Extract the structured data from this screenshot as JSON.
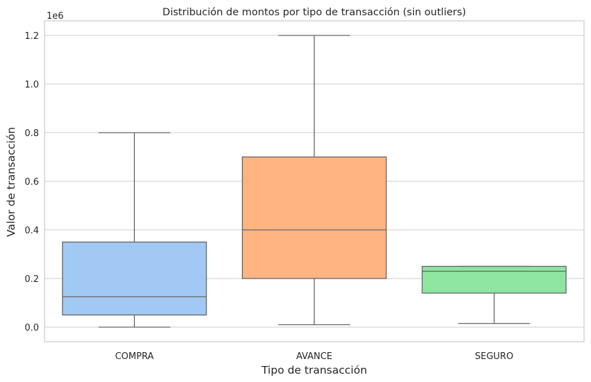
{
  "chart_data": {
    "type": "box",
    "title": "Distribución de montos por tipo de transacción (sin outliers)",
    "xlabel": "Tipo de transacción",
    "ylabel": "Valor de transacción",
    "y_offset_label": "1e6",
    "ylim": [
      -0.06,
      1.26
    ],
    "yticks": [
      0.0,
      0.2,
      0.4,
      0.6,
      0.8,
      1.0,
      1.2
    ],
    "ytick_labels": [
      "0.0",
      "0.2",
      "0.4",
      "0.6",
      "0.8",
      "1.0",
      "1.2"
    ],
    "grid": "horizontal",
    "categories": [
      "COMPRA",
      "AVANCE",
      "SEGURO"
    ],
    "boxes": [
      {
        "category": "COMPRA",
        "whisker_low": 0.0,
        "q1": 0.05,
        "median": 0.125,
        "q3": 0.35,
        "whisker_high": 0.8,
        "color": "#a1c9f4"
      },
      {
        "category": "AVANCE",
        "whisker_low": 0.01,
        "q1": 0.2,
        "median": 0.4,
        "q3": 0.7,
        "whisker_high": 1.2,
        "color": "#ffb482"
      },
      {
        "category": "SEGURO",
        "whisker_low": 0.015,
        "q1": 0.14,
        "median": 0.23,
        "q3": 0.25,
        "whisker_high": 0.25,
        "color": "#8de5a1"
      }
    ]
  }
}
